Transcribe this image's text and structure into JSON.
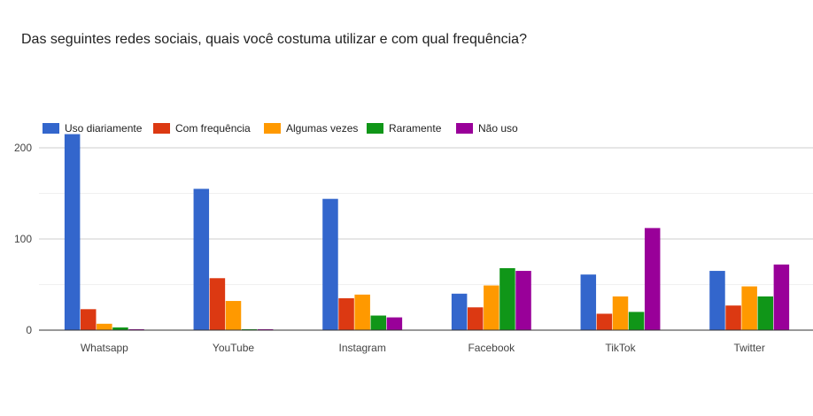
{
  "title": "Das seguintes redes sociais, quais você costuma utilizar e com qual frequência?",
  "chart_data": {
    "type": "bar",
    "title": "Das seguintes redes sociais, quais você costuma utilizar e com qual frequência?",
    "xlabel": "",
    "ylabel": "",
    "categories": [
      "Whatsapp",
      "YouTube",
      "Instagram",
      "Facebook",
      "TikTok",
      "Twitter"
    ],
    "ylim": [
      0,
      220
    ],
    "yticks": [
      0,
      100,
      200
    ],
    "grid": true,
    "legend_position": "top-left",
    "series": [
      {
        "name": "Uso diariamente",
        "color": "#3366cc",
        "values": [
          215,
          155,
          144,
          40,
          61,
          65
        ]
      },
      {
        "name": "Com frequência",
        "color": "#dc3912",
        "values": [
          23,
          57,
          35,
          25,
          18,
          27
        ]
      },
      {
        "name": "Algumas vezes",
        "color": "#ff9900",
        "values": [
          7,
          32,
          39,
          49,
          37,
          48
        ]
      },
      {
        "name": "Raramente",
        "color": "#109618",
        "values": [
          3,
          1,
          16,
          68,
          20,
          37
        ]
      },
      {
        "name": "Não uso",
        "color": "#990099",
        "values": [
          1,
          1,
          14,
          65,
          112,
          72
        ]
      }
    ]
  }
}
